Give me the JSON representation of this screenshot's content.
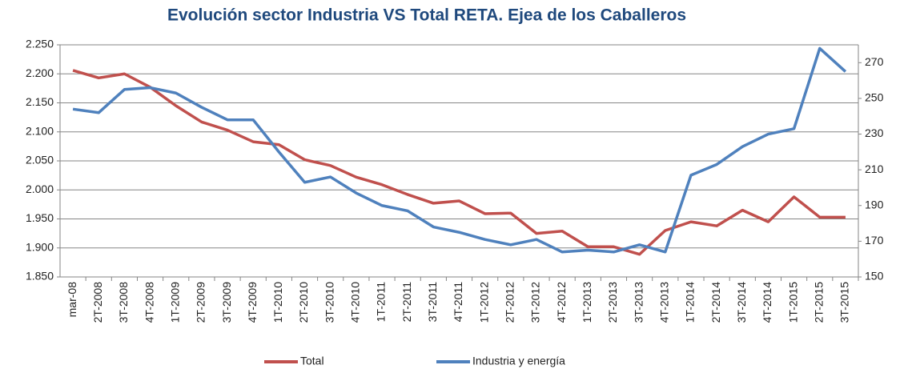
{
  "chart_data": {
    "type": "line",
    "title": "Evolución sector Industria VS Total RETA. Ejea de los Caballeros",
    "categories": [
      "mar-08",
      "2T-2008",
      "3T-2008",
      "4T-2008",
      "1T-2009",
      "2T-2009",
      "3T-2009",
      "4T-2009",
      "1T-2010",
      "2T-2010",
      "3T-2010",
      "4T-2010",
      "1T-2011",
      "2T-2011",
      "3T-2011",
      "4T-2011",
      "1T-2012",
      "2T-2012",
      "3T-2012",
      "4T-2012",
      "1T-2013",
      "2T-2013",
      "3T-2013",
      "4T-2013",
      "1T-2014",
      "2T-2014",
      "3T-2014",
      "4T-2014",
      "1T-2015",
      "2T-2015",
      "3T-2015"
    ],
    "series": [
      {
        "name": "Total",
        "color": "#c0504d",
        "values": [
          2206,
          2193,
          2200,
          2177,
          2145,
          2117,
          2103,
          2083,
          2078,
          2052,
          2042,
          2022,
          2009,
          1992,
          1977,
          1981,
          1959,
          1960,
          1925,
          1929,
          1902,
          1902,
          1889,
          1930,
          1945,
          1938,
          1965,
          1945,
          1988,
          1953,
          1953
        ]
      },
      {
        "name": "Industria y energía",
        "color": "#4f81bd",
        "axis": "y2",
        "values": [
          244,
          242,
          255,
          256,
          253,
          245,
          238,
          238,
          220,
          203,
          206,
          197,
          190,
          187,
          178,
          175,
          171,
          168,
          171,
          164,
          165,
          164,
          168,
          164,
          207,
          213,
          223,
          230,
          233,
          278,
          265
        ]
      }
    ],
    "ylim": [
      1850,
      2250
    ],
    "yticks": [
      {
        "value": 1850,
        "label": "1.850"
      },
      {
        "value": 1900,
        "label": "1.900"
      },
      {
        "value": 1950,
        "label": "1.950"
      },
      {
        "value": 2000,
        "label": "2.000"
      },
      {
        "value": 2050,
        "label": "2.050"
      },
      {
        "value": 2100,
        "label": "2.100"
      },
      {
        "value": 2150,
        "label": "2.150"
      },
      {
        "value": 2200,
        "label": "2.200"
      },
      {
        "value": 2250,
        "label": "2.250"
      }
    ],
    "y2lim": [
      150,
      280
    ],
    "y2ticks": [
      150,
      170,
      190,
      210,
      230,
      250,
      270
    ],
    "grid": true,
    "legend": "bottom"
  }
}
